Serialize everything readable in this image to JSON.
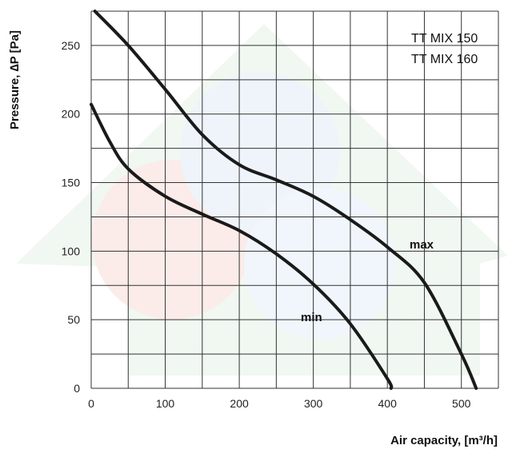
{
  "chart_data": {
    "type": "line",
    "xlabel": "Air capacity, [m³/h]",
    "ylabel": "Pressure, ∆P [Pa]",
    "xlim": [
      0,
      550
    ],
    "ylim": [
      0,
      275
    ],
    "x_ticks": [
      "0",
      "100",
      "200",
      "300",
      "400",
      "500"
    ],
    "y_ticks": [
      "0",
      "50",
      "100",
      "150",
      "200",
      "250"
    ],
    "grid": true,
    "legend_lines": [
      "TT MIX 150",
      "TT MIX 160"
    ],
    "legend_position": "top-right",
    "series": [
      {
        "name": "max",
        "x": [
          5,
          50,
          100,
          150,
          200,
          250,
          300,
          350,
          400,
          450,
          500,
          520
        ],
        "y": [
          275,
          250,
          218,
          185,
          163,
          152,
          140,
          123,
          103,
          77,
          25,
          0
        ]
      },
      {
        "name": "min",
        "x": [
          0,
          25,
          50,
          100,
          150,
          200,
          250,
          300,
          350,
          400,
          405
        ],
        "y": [
          207,
          180,
          160,
          140,
          127,
          115,
          98,
          76,
          47,
          7,
          0
        ]
      }
    ]
  }
}
